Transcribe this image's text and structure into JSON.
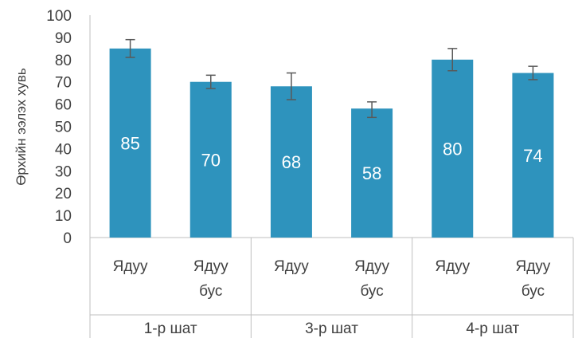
{
  "chart_data": {
    "type": "bar",
    "ylabel": "Өрхийн ээлэх хувь",
    "xlabel": "",
    "ylim": [
      0,
      100
    ],
    "y_ticks": [
      "0",
      "10",
      "20",
      "30",
      "40",
      "50",
      "60",
      "70",
      "80",
      "90",
      "100"
    ],
    "grid": false,
    "bar_color": "#2E93BD",
    "error_bar_color": "#595959",
    "groups": [
      {
        "label": "1-р шат",
        "bars": [
          {
            "label_lines": [
              "Ядуу"
            ],
            "value": 85,
            "data_label": "85",
            "err_low": 81,
            "err_high": 89
          },
          {
            "label_lines": [
              "Ядуу",
              "бус"
            ],
            "value": 70,
            "data_label": "70",
            "err_low": 67,
            "err_high": 73
          }
        ]
      },
      {
        "label": "3-р шат",
        "bars": [
          {
            "label_lines": [
              "Ядуу"
            ],
            "value": 68,
            "data_label": "68",
            "err_low": 62,
            "err_high": 74
          },
          {
            "label_lines": [
              "Ядуу",
              "бус"
            ],
            "value": 58,
            "data_label": "58",
            "err_low": 54,
            "err_high": 61
          }
        ]
      },
      {
        "label": "4-р шат",
        "bars": [
          {
            "label_lines": [
              "Ядуу"
            ],
            "value": 80,
            "data_label": "80",
            "err_low": 75,
            "err_high": 85
          },
          {
            "label_lines": [
              "Ядуу",
              "бус"
            ],
            "value": 74,
            "data_label": "74",
            "err_low": 71,
            "err_high": 77
          }
        ]
      }
    ]
  }
}
